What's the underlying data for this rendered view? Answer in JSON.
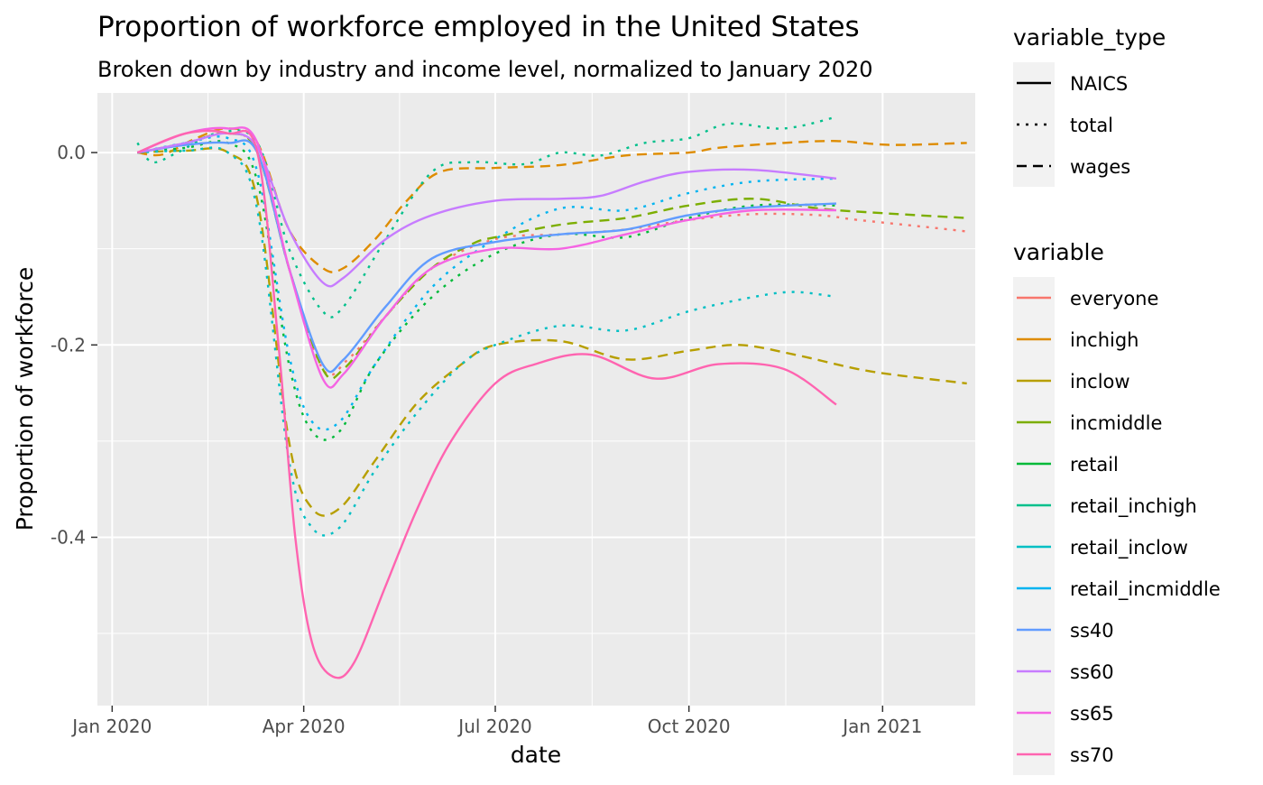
{
  "chart_data": {
    "type": "line",
    "title": "Proportion of workforce employed in the United States",
    "subtitle": "Broken down by industry and income level, normalized to January 2020",
    "xlabel": "date",
    "ylabel": "Proportion of workforce",
    "x_ticks": [
      {
        "date": "2020-01-01",
        "label": "Jan 2020"
      },
      {
        "date": "2020-04-01",
        "label": "Apr 2020"
      },
      {
        "date": "2020-07-01",
        "label": "Jul 2020"
      },
      {
        "date": "2020-10-01",
        "label": "Oct 2020"
      },
      {
        "date": "2021-01-01",
        "label": "Jan 2021"
      }
    ],
    "y_ticks": [
      0.0,
      -0.2,
      -0.4
    ],
    "y_tick_labels": [
      "0.0",
      "-0.2",
      "-0.4"
    ],
    "xlim": [
      "2019-12-25",
      "2021-02-14"
    ],
    "ylim": [
      -0.575,
      0.062
    ],
    "grid": true,
    "legend_position": "right",
    "legends": {
      "linetype": {
        "title": "variable_type",
        "entries": [
          {
            "label": "NAICS",
            "dash": "solid"
          },
          {
            "label": "total",
            "dash": "dotted"
          },
          {
            "label": "wages",
            "dash": "dashed"
          }
        ]
      },
      "color": {
        "title": "variable",
        "entries": [
          {
            "label": "everyone",
            "color": "#F8766D"
          },
          {
            "label": "inchigh",
            "color": "#DE8C00"
          },
          {
            "label": "inclow",
            "color": "#B79F00"
          },
          {
            "label": "incmiddle",
            "color": "#7CAE00"
          },
          {
            "label": "retail",
            "color": "#00BA38"
          },
          {
            "label": "retail_inchigh",
            "color": "#00C08B"
          },
          {
            "label": "retail_inclow",
            "color": "#00BFC4"
          },
          {
            "label": "retail_incmiddle",
            "color": "#00B4F0"
          },
          {
            "label": "ss40",
            "color": "#619CFF"
          },
          {
            "label": "ss60",
            "color": "#C77CFF"
          },
          {
            "label": "ss65",
            "color": "#F564E3"
          },
          {
            "label": "ss70",
            "color": "#FF64B0"
          }
        ]
      }
    },
    "series": [
      {
        "name": "everyone",
        "type": "total",
        "color": "#F8766D",
        "x": [
          "2020-01-13",
          "2020-02-05",
          "2020-02-25",
          "2020-03-10",
          "2020-03-25",
          "2020-04-10",
          "2020-04-22",
          "2020-05-10",
          "2020-06-01",
          "2020-07-01",
          "2020-08-01",
          "2020-09-01",
          "2020-10-01",
          "2020-11-01",
          "2020-12-01",
          "2020-12-20",
          "2021-01-20",
          "2021-02-10"
        ],
        "y": [
          0.0,
          0.01,
          0.02,
          0.0,
          -0.12,
          -0.225,
          -0.215,
          -0.17,
          -0.12,
          -0.09,
          -0.085,
          -0.08,
          -0.07,
          -0.064,
          -0.065,
          -0.07,
          -0.077,
          -0.082
        ]
      },
      {
        "name": "inchigh",
        "type": "wages",
        "color": "#DE8C00",
        "x": [
          "2020-01-13",
          "2020-01-25",
          "2020-02-10",
          "2020-02-25",
          "2020-03-10",
          "2020-03-25",
          "2020-04-10",
          "2020-04-20",
          "2020-05-05",
          "2020-05-20",
          "2020-06-05",
          "2020-07-01",
          "2020-08-01",
          "2020-09-01",
          "2020-10-01",
          "2020-10-15",
          "2020-11-15",
          "2020-12-10",
          "2021-01-05",
          "2021-02-10"
        ],
        "y": [
          0.0,
          -0.002,
          0.015,
          0.025,
          0.01,
          -0.08,
          -0.12,
          -0.12,
          -0.09,
          -0.05,
          -0.02,
          -0.016,
          -0.013,
          -0.003,
          0.0,
          0.005,
          0.01,
          0.012,
          0.008,
          0.01
        ]
      },
      {
        "name": "inclow",
        "type": "wages",
        "color": "#B79F00",
        "x": [
          "2020-01-13",
          "2020-02-05",
          "2020-02-25",
          "2020-03-10",
          "2020-03-25",
          "2020-04-05",
          "2020-04-18",
          "2020-05-05",
          "2020-05-25",
          "2020-06-15",
          "2020-07-01",
          "2020-08-01",
          "2020-09-01",
          "2020-10-01",
          "2020-10-25",
          "2020-11-20",
          "2020-12-20",
          "2021-01-10",
          "2021-02-10"
        ],
        "y": [
          0.0,
          0.002,
          0.0,
          -0.05,
          -0.3,
          -0.37,
          -0.37,
          -0.32,
          -0.26,
          -0.22,
          -0.2,
          -0.196,
          -0.215,
          -0.206,
          -0.2,
          -0.21,
          -0.225,
          -0.232,
          -0.24
        ]
      },
      {
        "name": "incmiddle",
        "type": "wages",
        "color": "#7CAE00",
        "x": [
          "2020-01-13",
          "2020-02-05",
          "2020-02-25",
          "2020-03-10",
          "2020-03-25",
          "2020-04-10",
          "2020-04-20",
          "2020-05-10",
          "2020-06-01",
          "2020-06-20",
          "2020-07-01",
          "2020-08-01",
          "2020-09-01",
          "2020-10-01",
          "2020-11-01",
          "2020-12-01",
          "2021-01-01",
          "2021-02-10"
        ],
        "y": [
          0.0,
          0.01,
          0.02,
          0.0,
          -0.12,
          -0.225,
          -0.225,
          -0.17,
          -0.12,
          -0.095,
          -0.088,
          -0.075,
          -0.068,
          -0.055,
          -0.048,
          -0.058,
          -0.063,
          -0.068
        ]
      },
      {
        "name": "retail",
        "type": "total",
        "color": "#00BA38",
        "x": [
          "2020-01-13",
          "2020-02-05",
          "2020-02-25",
          "2020-03-10",
          "2020-03-25",
          "2020-04-05",
          "2020-04-18",
          "2020-05-05",
          "2020-06-01",
          "2020-07-01",
          "2020-08-01",
          "2020-09-01",
          "2020-10-01",
          "2020-11-01",
          "2020-12-10"
        ],
        "y": [
          0.0,
          0.005,
          0.01,
          -0.03,
          -0.22,
          -0.29,
          -0.29,
          -0.22,
          -0.15,
          -0.105,
          -0.085,
          -0.088,
          -0.068,
          -0.055,
          -0.055
        ]
      },
      {
        "name": "retail_inchigh",
        "type": "total",
        "color": "#00C08B",
        "x": [
          "2020-01-13",
          "2020-01-20",
          "2020-02-01",
          "2020-02-20",
          "2020-03-10",
          "2020-03-25",
          "2020-04-10",
          "2020-04-20",
          "2020-05-10",
          "2020-06-01",
          "2020-06-20",
          "2020-07-15",
          "2020-08-01",
          "2020-08-20",
          "2020-09-10",
          "2020-10-01",
          "2020-10-20",
          "2020-11-15",
          "2020-12-10"
        ],
        "y": [
          0.01,
          -0.01,
          0.0,
          0.02,
          0.01,
          -0.1,
          -0.165,
          -0.16,
          -0.09,
          -0.02,
          -0.01,
          -0.012,
          0.0,
          -0.003,
          0.01,
          0.015,
          0.03,
          0.025,
          0.037
        ]
      },
      {
        "name": "retail_inclow",
        "type": "total",
        "color": "#00BFC4",
        "x": [
          "2020-01-13",
          "2020-02-05",
          "2020-02-25",
          "2020-03-10",
          "2020-03-25",
          "2020-04-05",
          "2020-04-18",
          "2020-05-05",
          "2020-05-25",
          "2020-06-15",
          "2020-07-01",
          "2020-08-01",
          "2020-09-01",
          "2020-10-01",
          "2020-11-01",
          "2020-11-20",
          "2020-12-10"
        ],
        "y": [
          0.0,
          0.002,
          0.0,
          -0.06,
          -0.32,
          -0.39,
          -0.39,
          -0.33,
          -0.27,
          -0.22,
          -0.2,
          -0.18,
          -0.185,
          -0.165,
          -0.15,
          -0.145,
          -0.15
        ]
      },
      {
        "name": "retail_incmiddle",
        "type": "total",
        "color": "#00B4F0",
        "x": [
          "2020-01-13",
          "2020-02-05",
          "2020-02-25",
          "2020-03-10",
          "2020-03-25",
          "2020-04-05",
          "2020-04-18",
          "2020-05-05",
          "2020-06-01",
          "2020-07-01",
          "2020-08-01",
          "2020-09-01",
          "2020-10-01",
          "2020-11-01",
          "2020-12-10"
        ],
        "y": [
          0.0,
          0.01,
          0.015,
          -0.02,
          -0.21,
          -0.28,
          -0.28,
          -0.22,
          -0.14,
          -0.09,
          -0.058,
          -0.06,
          -0.042,
          -0.03,
          -0.027
        ]
      },
      {
        "name": "ss40",
        "type": "NAICS",
        "color": "#619CFF",
        "x": [
          "2020-01-13",
          "2020-02-05",
          "2020-02-25",
          "2020-03-10",
          "2020-03-25",
          "2020-04-10",
          "2020-04-20",
          "2020-05-10",
          "2020-06-01",
          "2020-07-01",
          "2020-08-01",
          "2020-09-01",
          "2020-10-01",
          "2020-11-01",
          "2020-12-10"
        ],
        "y": [
          0.0,
          0.008,
          0.01,
          0.0,
          -0.12,
          -0.22,
          -0.215,
          -0.16,
          -0.11,
          -0.093,
          -0.085,
          -0.08,
          -0.065,
          -0.057,
          -0.053
        ]
      },
      {
        "name": "ss60",
        "type": "NAICS",
        "color": "#C77CFF",
        "x": [
          "2020-01-13",
          "2020-02-05",
          "2020-02-25",
          "2020-03-10",
          "2020-03-25",
          "2020-04-10",
          "2020-04-20",
          "2020-05-10",
          "2020-06-01",
          "2020-07-01",
          "2020-08-01",
          "2020-08-20",
          "2020-09-10",
          "2020-10-01",
          "2020-11-01",
          "2020-12-10"
        ],
        "y": [
          0.0,
          0.01,
          0.02,
          0.005,
          -0.08,
          -0.135,
          -0.13,
          -0.09,
          -0.065,
          -0.05,
          -0.048,
          -0.045,
          -0.03,
          -0.02,
          -0.018,
          -0.027
        ]
      },
      {
        "name": "ss65",
        "type": "NAICS",
        "color": "#F564E3",
        "x": [
          "2020-01-13",
          "2020-02-05",
          "2020-02-25",
          "2020-03-10",
          "2020-03-25",
          "2020-04-10",
          "2020-04-20",
          "2020-05-10",
          "2020-06-01",
          "2020-07-01",
          "2020-08-01",
          "2020-09-01",
          "2020-10-01",
          "2020-11-01",
          "2020-12-10"
        ],
        "y": [
          0.0,
          0.02,
          0.025,
          0.01,
          -0.12,
          -0.235,
          -0.23,
          -0.17,
          -0.12,
          -0.1,
          -0.1,
          -0.085,
          -0.07,
          -0.06,
          -0.06
        ]
      },
      {
        "name": "ss70",
        "type": "NAICS",
        "color": "#FF64B0",
        "x": [
          "2020-01-13",
          "2020-02-05",
          "2020-02-25",
          "2020-03-10",
          "2020-03-20",
          "2020-03-28",
          "2020-04-05",
          "2020-04-15",
          "2020-04-25",
          "2020-05-10",
          "2020-05-25",
          "2020-06-10",
          "2020-07-01",
          "2020-07-20",
          "2020-08-15",
          "2020-09-15",
          "2020-10-15",
          "2020-11-15",
          "2020-12-10"
        ],
        "y": [
          0.0,
          0.02,
          0.02,
          0.0,
          -0.2,
          -0.4,
          -0.51,
          -0.545,
          -0.53,
          -0.45,
          -0.37,
          -0.3,
          -0.24,
          -0.22,
          -0.21,
          -0.235,
          -0.22,
          -0.225,
          -0.262
        ]
      }
    ]
  }
}
